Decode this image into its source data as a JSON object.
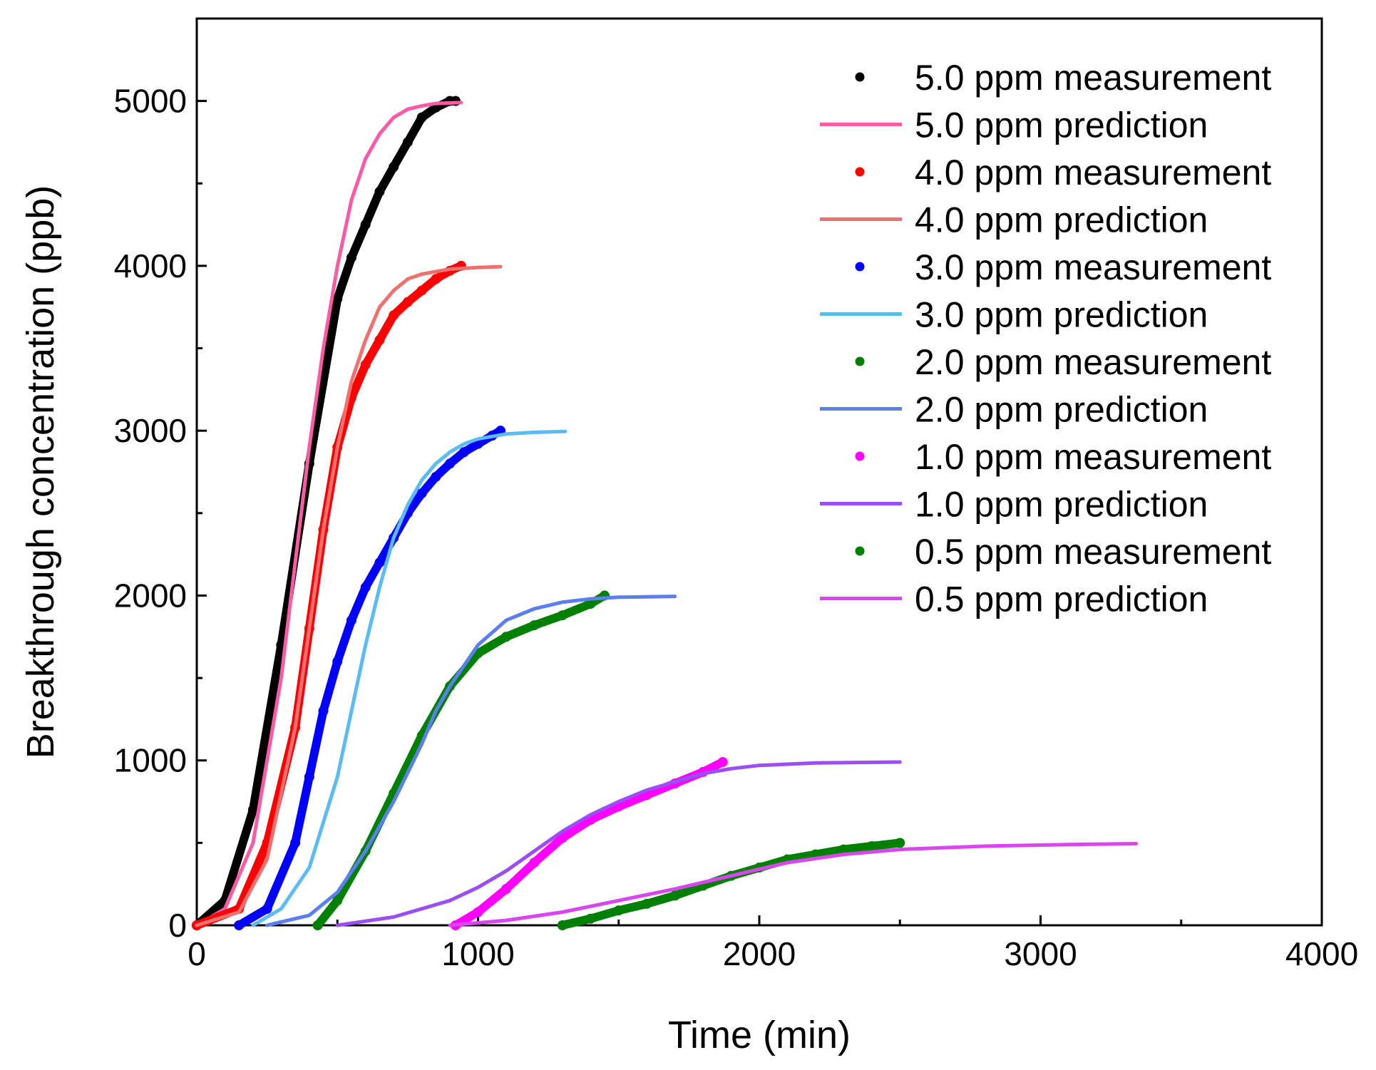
{
  "chart_data": {
    "type": "line",
    "title": "",
    "xlabel": "Time (min)",
    "ylabel": "Breakthrough concentration (ppb)",
    "xlim": [
      0,
      4000
    ],
    "ylim": [
      0,
      5500
    ],
    "x_ticks": [
      0,
      1000,
      2000,
      3000,
      4000
    ],
    "x_tick_labels": [
      "0",
      "1000",
      "2000",
      "3000",
      "4000"
    ],
    "y_ticks": [
      0,
      1000,
      2000,
      3000,
      4000,
      5000
    ],
    "y_tick_labels": [
      "0",
      "1000",
      "2000",
      "3000",
      "4000",
      "5000"
    ],
    "grid": false,
    "legend_position": "top-right",
    "series": [
      {
        "name": "5.0 ppm measurement",
        "kind": "measurement",
        "color": "#000000",
        "x": [
          0,
          100,
          200,
          300,
          400,
          500,
          550,
          600,
          650,
          700,
          750,
          800,
          850,
          900,
          920
        ],
        "y": [
          0,
          150,
          700,
          1700,
          2800,
          3800,
          4050,
          4250,
          4450,
          4600,
          4750,
          4900,
          4960,
          5000,
          5000
        ]
      },
      {
        "name": "5.0 ppm prediction",
        "kind": "prediction",
        "color": "#ff5aa5",
        "x": [
          0,
          100,
          200,
          300,
          350,
          400,
          450,
          500,
          550,
          600,
          650,
          700,
          750,
          800,
          850,
          940
        ],
        "y": [
          0,
          100,
          500,
          1500,
          2200,
          2900,
          3500,
          4000,
          4400,
          4650,
          4800,
          4900,
          4950,
          4970,
          4985,
          4990
        ]
      },
      {
        "name": "4.0 ppm measurement",
        "kind": "measurement",
        "color": "#ff0000",
        "x": [
          0,
          150,
          250,
          350,
          400,
          450,
          500,
          550,
          600,
          650,
          700,
          750,
          800,
          850,
          900,
          940
        ],
        "y": [
          0,
          100,
          500,
          1200,
          1800,
          2400,
          2900,
          3200,
          3400,
          3550,
          3700,
          3780,
          3850,
          3920,
          3970,
          4000
        ]
      },
      {
        "name": "4.0 ppm prediction",
        "kind": "prediction",
        "color": "#f07070",
        "x": [
          0,
          150,
          250,
          350,
          400,
          450,
          500,
          550,
          600,
          650,
          700,
          750,
          800,
          900,
          1000,
          1080
        ],
        "y": [
          0,
          80,
          400,
          1200,
          1800,
          2400,
          2900,
          3300,
          3550,
          3750,
          3850,
          3920,
          3950,
          3980,
          3990,
          3995
        ]
      },
      {
        "name": "3.0 ppm measurement",
        "kind": "measurement",
        "color": "#0000ff",
        "x": [
          150,
          250,
          350,
          400,
          450,
          500,
          550,
          600,
          650,
          700,
          750,
          800,
          850,
          900,
          950,
          1000,
          1050,
          1080
        ],
        "y": [
          0,
          100,
          500,
          900,
          1300,
          1600,
          1850,
          2050,
          2200,
          2350,
          2500,
          2620,
          2720,
          2800,
          2870,
          2920,
          2970,
          3000
        ]
      },
      {
        "name": "3.0 ppm prediction",
        "kind": "prediction",
        "color": "#5bbcf5",
        "x": [
          200,
          300,
          400,
          500,
          550,
          600,
          650,
          700,
          750,
          800,
          850,
          900,
          950,
          1000,
          1100,
          1200,
          1310
        ],
        "y": [
          0,
          100,
          350,
          900,
          1300,
          1700,
          2050,
          2350,
          2550,
          2700,
          2800,
          2870,
          2920,
          2950,
          2980,
          2990,
          2995
        ]
      },
      {
        "name": "2.0 ppm measurement",
        "kind": "measurement",
        "color": "#008000",
        "x": [
          430,
          500,
          600,
          700,
          800,
          900,
          1000,
          1100,
          1200,
          1300,
          1400,
          1450
        ],
        "y": [
          0,
          150,
          450,
          800,
          1150,
          1450,
          1650,
          1750,
          1820,
          1880,
          1950,
          2000
        ]
      },
      {
        "name": "2.0 ppm prediction",
        "kind": "prediction",
        "color": "#5b7ff0",
        "x": [
          250,
          400,
          500,
          600,
          700,
          800,
          850,
          900,
          1000,
          1100,
          1200,
          1300,
          1400,
          1500,
          1700
        ],
        "y": [
          0,
          60,
          200,
          450,
          750,
          1100,
          1300,
          1450,
          1700,
          1850,
          1920,
          1960,
          1980,
          1990,
          1995
        ]
      },
      {
        "name": "1.0 ppm measurement",
        "kind": "measurement",
        "color": "#ff00ff",
        "x": [
          920,
          1000,
          1100,
          1200,
          1300,
          1400,
          1500,
          1600,
          1700,
          1800,
          1870
        ],
        "y": [
          0,
          80,
          220,
          380,
          530,
          640,
          720,
          790,
          860,
          930,
          990
        ]
      },
      {
        "name": "1.0 ppm prediction",
        "kind": "prediction",
        "color": "#9b4ef5",
        "x": [
          500,
          700,
          900,
          1000,
          1100,
          1200,
          1300,
          1400,
          1500,
          1600,
          1700,
          1800,
          1900,
          2000,
          2200,
          2500
        ],
        "y": [
          0,
          50,
          150,
          230,
          330,
          450,
          570,
          670,
          750,
          820,
          870,
          920,
          950,
          970,
          985,
          990
        ]
      },
      {
        "name": "0.5 ppm measurement",
        "kind": "measurement",
        "color": "#008000",
        "x": [
          1300,
          1400,
          1500,
          1600,
          1700,
          1800,
          1900,
          2000,
          2100,
          2200,
          2300,
          2400,
          2500
        ],
        "y": [
          0,
          40,
          90,
          130,
          180,
          240,
          300,
          350,
          400,
          430,
          460,
          480,
          500
        ]
      },
      {
        "name": "0.5 ppm prediction",
        "kind": "prediction",
        "color": "#d946f0",
        "x": [
          900,
          1100,
          1300,
          1500,
          1700,
          1900,
          2100,
          2300,
          2500,
          2800,
          3100,
          3340
        ],
        "y": [
          0,
          30,
          80,
          150,
          220,
          300,
          380,
          430,
          460,
          480,
          490,
          495
        ]
      }
    ]
  }
}
